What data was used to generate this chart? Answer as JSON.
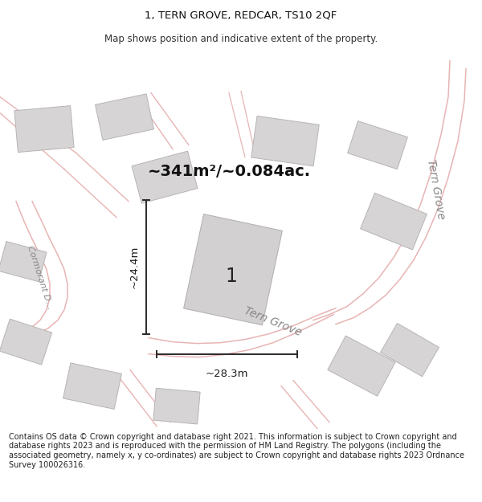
{
  "title": "1, TERN GROVE, REDCAR, TS10 2QF",
  "subtitle": "Map shows position and indicative extent of the property.",
  "footer": "Contains OS data © Crown copyright and database right 2021. This information is subject to Crown copyright and database rights 2023 and is reproduced with the permission of HM Land Registry. The polygons (including the associated geometry, namely x, y co-ordinates) are subject to Crown copyright and database rights 2023 Ordnance Survey 100026316.",
  "area_label": "~341m²/~0.084ac.",
  "property_number": "1",
  "width_label": "~28.3m",
  "height_label": "~24.4m",
  "map_bg": "#f2f0f0",
  "road_color": "#e8b4b4",
  "road_color_dark": "#c89898",
  "building_color": "#d6d4d4",
  "building_edge": "#b8b4b4",
  "plot_fill": "#ffffff",
  "plot_edge_color": "#dd0000",
  "dim_line_color": "#2a2a2a",
  "road_label_color": "#888888",
  "title_fontsize": 9.5,
  "subtitle_fontsize": 8.5,
  "footer_fontsize": 7.0,
  "area_label_fontsize": 14,
  "property_number_fontsize": 17,
  "dim_label_fontsize": 9.5,
  "road_label_size": 10
}
